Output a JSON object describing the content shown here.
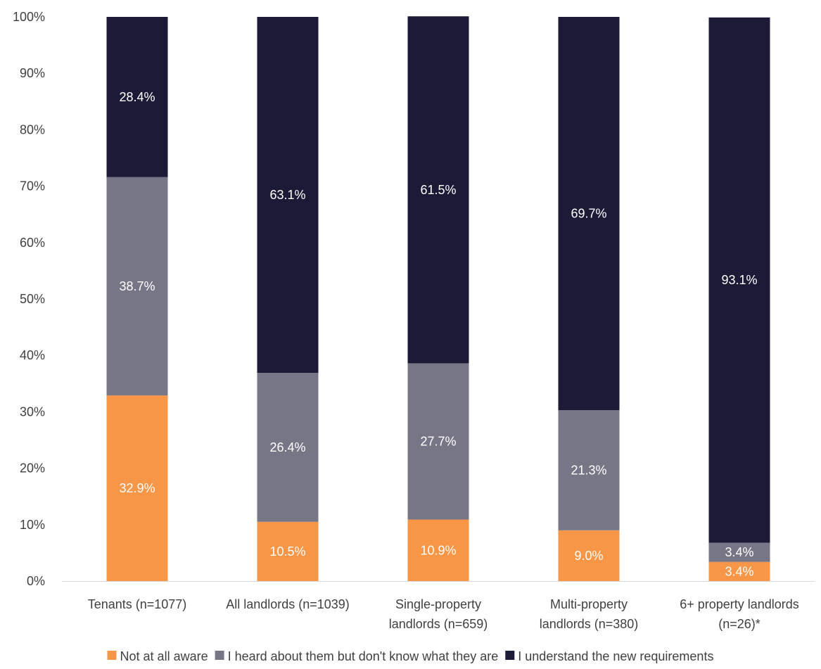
{
  "chart_data": {
    "type": "bar",
    "stacked": true,
    "categories": [
      [
        "Tenants (n=1077)"
      ],
      [
        "All landlords (n=1039)"
      ],
      [
        "Single-property",
        "landlords (n=659)"
      ],
      [
        "Multi-property",
        "landlords (n=380)"
      ],
      [
        "6+ property landlords",
        "(n=26)*"
      ]
    ],
    "series": [
      {
        "name": "Not at all aware",
        "color": "#F79646",
        "values": [
          32.9,
          10.5,
          10.9,
          9.0,
          3.4
        ],
        "labels": [
          "32.9%",
          "10.5%",
          "10.9%",
          "9.0%",
          "3.4%"
        ]
      },
      {
        "name": "I heard about them but don't know what they are",
        "color": "#777686",
        "values": [
          38.7,
          26.4,
          27.7,
          21.3,
          3.4
        ],
        "labels": [
          "38.7%",
          "26.4%",
          "27.7%",
          "21.3%",
          "3.4%"
        ]
      },
      {
        "name": "I understand the new requirements",
        "color": "#1B1B38",
        "values": [
          28.4,
          63.1,
          61.5,
          69.7,
          93.1
        ],
        "labels": [
          "28.4%",
          "63.1%",
          "61.5%",
          "69.7%",
          "93.1%"
        ]
      }
    ],
    "y_ticks": [
      "0%",
      "10%",
      "20%",
      "30%",
      "40%",
      "50%",
      "60%",
      "70%",
      "80%",
      "90%",
      "100%"
    ],
    "ylim": [
      0,
      100
    ],
    "grid": false,
    "legend_position": "bottom"
  }
}
